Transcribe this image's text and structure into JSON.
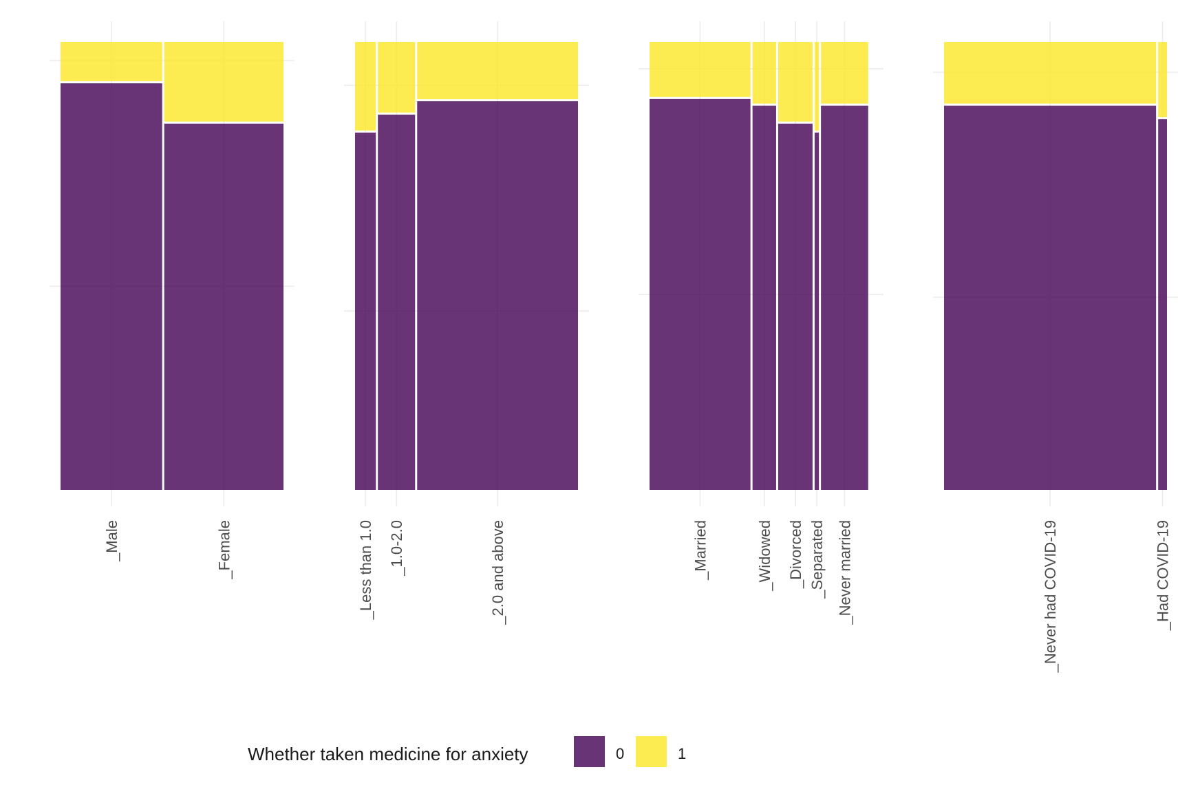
{
  "chart_data": {
    "type": "mosaic",
    "legend": {
      "title": "Whether taken medicine for anxiety",
      "position": "bottom",
      "entries": [
        {
          "label": "0",
          "color": "#440154"
        },
        {
          "label": "1",
          "color": "#FDE725"
        }
      ]
    },
    "fill_opacity": 0.8,
    "grid": true,
    "panels": [
      {
        "categories": [
          {
            "label": "_Male",
            "share": 0.46,
            "p1": 0.09
          },
          {
            "label": "_Female",
            "share": 0.54,
            "p1": 0.18
          }
        ]
      },
      {
        "categories": [
          {
            "label": "_Less than 1.0",
            "share": 0.095,
            "p1": 0.2
          },
          {
            "label": "_1.0-2.0",
            "share": 0.17,
            "p1": 0.16
          },
          {
            "label": "_2.0 and above",
            "share": 0.735,
            "p1": 0.13
          }
        ]
      },
      {
        "categories": [
          {
            "label": "_Married",
            "share": 0.47,
            "p1": 0.125
          },
          {
            "label": "_Widowed",
            "share": 0.11,
            "p1": 0.14
          },
          {
            "label": "_Divorced",
            "share": 0.16,
            "p1": 0.18
          },
          {
            "label": "_Separated",
            "share": 0.02,
            "p1": 0.2
          },
          {
            "label": "_Never married",
            "share": 0.22,
            "p1": 0.14
          }
        ]
      },
      {
        "categories": [
          {
            "label": "_Never had COVID-19",
            "share": 0.96,
            "p1": 0.14
          },
          {
            "label": "_Had COVID-19",
            "share": 0.04,
            "p1": 0.17
          }
        ]
      }
    ]
  }
}
